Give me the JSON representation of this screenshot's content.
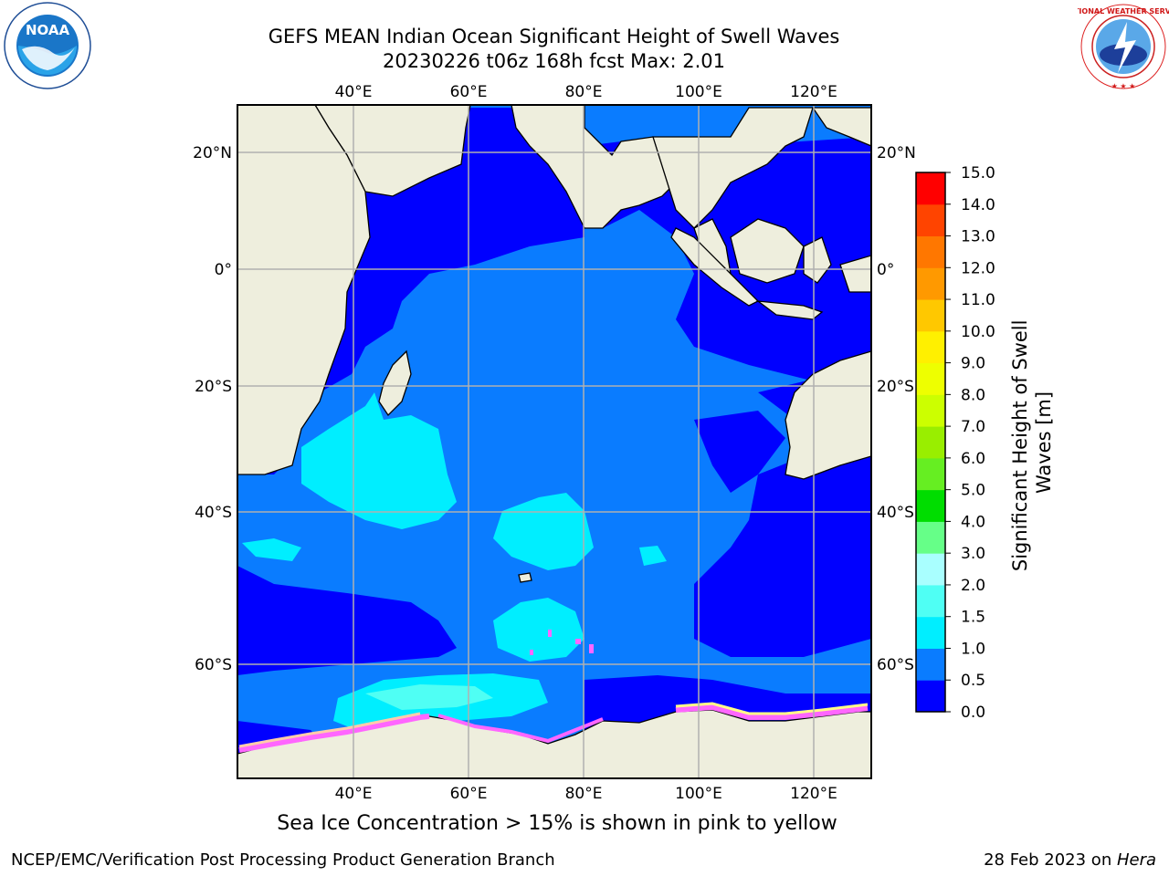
{
  "title_line1": "GEFS MEAN Indian Ocean Significant Height of Swell Waves",
  "title_line2": "20230226 t06z 168h fcst   Max: 2.01",
  "subtitle": "Sea Ice Concentration > 15% is shown in pink to yellow",
  "footer_left": "NCEP/EMC/Verification Post Processing Product Generation Branch",
  "footer_right_date": "28 Feb 2023 on ",
  "footer_right_machine": "Hera",
  "logos": {
    "noaa_text": "NOAA",
    "noaa_ring_text": "NATIONAL OCEANIC AND ATMOSPHERIC ADMINISTRATION · U.S. DEPARTMENT OF COMMERCE",
    "nws_ring_text": "NATIONAL WEATHER SERVICE"
  },
  "map": {
    "lon_labels": [
      "40°E",
      "60°E",
      "80°E",
      "100°E",
      "120°E"
    ],
    "lat_labels": [
      "20°N",
      "0°",
      "20°S",
      "40°S",
      "60°S"
    ],
    "lon_values": [
      40,
      60,
      80,
      100,
      120
    ],
    "lat_values": [
      20,
      0,
      -20,
      -40,
      -60
    ],
    "lon_range": [
      20,
      130
    ],
    "lat_range": [
      -72,
      28
    ],
    "land_color": "#EEEEDD",
    "ice_colors": [
      "#FF66FF",
      "#FFCCAA",
      "#FFFF88"
    ]
  },
  "colorbar": {
    "label": "Significant Height of Swell Waves [m]",
    "tick_labels": [
      "0.0",
      "0.5",
      "1.0",
      "1.5",
      "2.0",
      "3.0",
      "4.0",
      "5.0",
      "6.0",
      "7.0",
      "8.0",
      "9.0",
      "10.0",
      "11.0",
      "12.0",
      "13.0",
      "14.0",
      "15.0"
    ],
    "colors": [
      "#0000FF",
      "#0A7CFF",
      "#00EEFF",
      "#4FFFF4",
      "#A9FFFF",
      "#66FF88",
      "#00DD00",
      "#66EE22",
      "#99EE00",
      "#CCFF00",
      "#EEFF00",
      "#FFF000",
      "#FFC800",
      "#FF9900",
      "#FF7700",
      "#FF4400",
      "#FF0000"
    ]
  }
}
